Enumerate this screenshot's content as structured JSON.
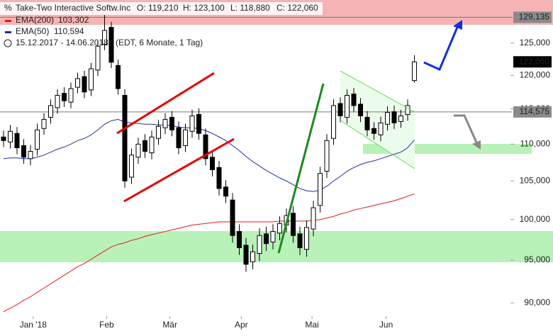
{
  "header": {
    "title": "Take-Two Interactive Softw.Inc",
    "open": "O: 119,210",
    "high": "H: 123,100",
    "low": "L: 118,880",
    "close": "C: 122,060",
    "range": "15.12.2017 - 14.06.2018",
    "info": "(EDT, 6 Monate, 1 Tag)"
  },
  "chart_data": {
    "type": "candlestick",
    "open": [
      111000,
      110300,
      111500,
      109800,
      108000,
      109300,
      112200,
      113800,
      115200,
      117300,
      116000,
      118200,
      119800,
      117800,
      120800,
      124800,
      127500,
      121500,
      117000,
      105500,
      108200,
      110500,
      108800,
      110800,
      112300,
      113800,
      112300,
      109800,
      111800,
      114200,
      111300,
      108200,
      106800,
      104200,
      102500,
      98500,
      96800,
      94800,
      95800,
      98200,
      97200,
      98300,
      99300,
      100800,
      98200,
      96300,
      98800,
      101800,
      106300,
      110800,
      115800,
      113800,
      117200,
      115700,
      113800,
      112200,
      111300,
      112800,
      114600,
      113200,
      114200,
      119210
    ],
    "high": [
      111900,
      112700,
      112400,
      110700,
      109900,
      112900,
      114400,
      116400,
      117900,
      118200,
      118900,
      120400,
      120700,
      121900,
      125400,
      129500,
      128400,
      122400,
      117900,
      109400,
      110900,
      111400,
      111900,
      113400,
      114400,
      114700,
      113200,
      112900,
      114900,
      115100,
      112200,
      109100,
      107700,
      105100,
      103400,
      99400,
      97700,
      96900,
      98900,
      99100,
      99400,
      100400,
      101400,
      101700,
      99100,
      99900,
      102400,
      106900,
      111400,
      116400,
      116700,
      117900,
      118100,
      116600,
      114700,
      113100,
      113900,
      115400,
      115500,
      114900,
      116400,
      123100
    ],
    "low": [
      109600,
      109400,
      108600,
      107300,
      107100,
      108400,
      111300,
      112900,
      114300,
      115300,
      115100,
      117300,
      116600,
      116900,
      119900,
      123900,
      121100,
      117100,
      104100,
      104600,
      107300,
      108100,
      107900,
      109900,
      111400,
      111100,
      108600,
      108900,
      110900,
      110600,
      107100,
      105600,
      103100,
      102100,
      97100,
      95600,
      93600,
      93900,
      94900,
      96100,
      96300,
      97400,
      98400,
      97100,
      95600,
      95400,
      97900,
      100900,
      105400,
      109900,
      113100,
      112900,
      114600,
      113100,
      111100,
      110600,
      110400,
      111900,
      112100,
      112300,
      113300,
      118880
    ],
    "close": [
      110500,
      111800,
      109500,
      108200,
      109000,
      112000,
      113500,
      115500,
      117000,
      116200,
      118000,
      119500,
      117500,
      121000,
      124500,
      127000,
      122000,
      118000,
      105000,
      108500,
      110000,
      109000,
      111000,
      112500,
      113500,
      112000,
      109500,
      112000,
      114000,
      111500,
      108000,
      106500,
      104000,
      103000,
      98000,
      96500,
      94500,
      96000,
      98000,
      97000,
      98500,
      99500,
      100500,
      98000,
      96500,
      99000,
      101500,
      106000,
      110500,
      115500,
      114000,
      117000,
      115500,
      114000,
      112000,
      111500,
      113000,
      114500,
      113000,
      114000,
      115500,
      122060
    ],
    "up_color": "#ffffff",
    "down_color": "#000000",
    "series": [
      {
        "name": "EMA(200)",
        "color": "#e41a1a",
        "value_label": "103,302",
        "values": [
          89000,
          89400,
          89800,
          90300,
          90700,
          91200,
          91700,
          92200,
          92700,
          93200,
          93700,
          94200,
          94600,
          95100,
          95600,
          96100,
          96600,
          96900,
          97100,
          97400,
          97600,
          97900,
          98100,
          98300,
          98500,
          98700,
          98900,
          99100,
          99300,
          99400,
          99500,
          99600,
          99700,
          99700,
          99700,
          99700,
          99700,
          99700,
          99700,
          99700,
          99700,
          99800,
          99800,
          99800,
          99800,
          99800,
          99900,
          100000,
          100200,
          100400,
          100700,
          100900,
          101200,
          101400,
          101600,
          101800,
          102000,
          102200,
          102400,
          102700,
          103000,
          103302
        ]
      },
      {
        "name": "EMA(50)",
        "color": "#1f2f9e",
        "value_label": "110,594",
        "values": [
          108000,
          108100,
          108100,
          108000,
          108000,
          108200,
          108500,
          108900,
          109300,
          109600,
          110000,
          110500,
          110800,
          111300,
          112000,
          112800,
          113300,
          113500,
          113100,
          113000,
          112900,
          112800,
          112800,
          112700,
          112700,
          112600,
          112400,
          112300,
          112300,
          112200,
          111900,
          111500,
          111000,
          110500,
          109800,
          109100,
          108300,
          107600,
          107000,
          106400,
          105900,
          105400,
          105000,
          104500,
          104000,
          103700,
          103600,
          103800,
          104300,
          105000,
          105600,
          106300,
          106800,
          107200,
          107500,
          107700,
          108000,
          108300,
          108600,
          108900,
          109500,
          110594
        ]
      }
    ],
    "log": true,
    "ylim": [
      88580,
      131990
    ],
    "yticks": [
      {
        "value": 125000,
        "label": "125,000"
      },
      {
        "value": 120000,
        "label": "120,000"
      },
      {
        "value": 115000,
        "label": "115,000"
      },
      {
        "value": 110000,
        "label": "110,000"
      },
      {
        "value": 105000,
        "label": "105,000"
      },
      {
        "value": 100000,
        "label": "100,000"
      },
      {
        "value": 95000,
        "label": "95,000"
      },
      {
        "value": 90000,
        "label": "90,000"
      }
    ],
    "xticks": [
      {
        "value": 4.4,
        "label": "Jan '18"
      },
      {
        "value": 15.3,
        "label": "Feb"
      },
      {
        "value": 24.7,
        "label": "Mär"
      },
      {
        "value": 35.3,
        "label": "Apr"
      },
      {
        "value": 45.8,
        "label": "Mai"
      },
      {
        "value": 56.8,
        "label": "Jun"
      }
    ],
    "price_tags": [
      {
        "value": 129135,
        "label": "129,135",
        "color": "#8a8a8a"
      },
      {
        "value": 122060,
        "label": "122,060",
        "color": "#000000"
      },
      {
        "value": 114575,
        "label": "114,575",
        "color": "#8a8a8a"
      }
    ]
  }
}
